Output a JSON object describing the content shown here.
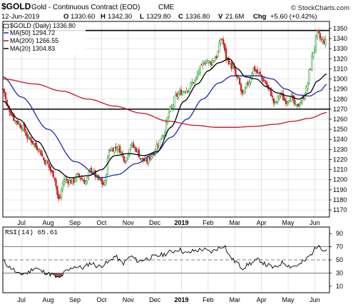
{
  "header": {
    "symbol": "$GOLD",
    "description": "Gold - Continuous Contract (EOD)",
    "exchange": "CME",
    "copyright": "© StockCharts.com"
  },
  "quote": {
    "date": "12-Jun-2019",
    "open_label": "O",
    "open": "1330.60",
    "high_label": "H",
    "high": "1342.30",
    "low_label": "L",
    "low": "1329.80",
    "close_label": "C",
    "close": "1336.80",
    "volume_label": "V",
    "volume": "21.6M",
    "change_label": "Chg",
    "change": "+5.60 (+0.42%)"
  },
  "legend": {
    "price": "$GOLD (Daily) 1336.80",
    "ma50": "MA(50) 1294.72",
    "ma200": "MA(200) 1266.55",
    "ma20": "MA(20) 1304.83",
    "rsi": "RSI(14) 65.61"
  },
  "colors": {
    "background": "#ffffff",
    "grid": "#cfcfcf",
    "candle_up": "#2a9d2a",
    "candle_down": "#c62828",
    "ma50": "#1f2a9e",
    "ma200": "#c8102e",
    "ma20": "#000000",
    "rsi_line": "#000000",
    "rsi_overbought_fill": "#c3aee0",
    "rsi_oversold_fill": "#8a5a50",
    "support_line": "#000000"
  },
  "chart_data": [
    {
      "type": "candlestick",
      "title": "$GOLD (Daily) 1336.80",
      "x_tick_labels": [
        "Jul",
        "Aug",
        "Sep",
        "Oct",
        "Nov",
        "Dec",
        "2019",
        "Feb",
        "Mar",
        "Apr",
        "May",
        "Jun"
      ],
      "x_tick_months": [
        1,
        2,
        3,
        4,
        5,
        6,
        7,
        8,
        9,
        10,
        11,
        12
      ],
      "y_tick_labels": [
        "1170",
        "1180",
        "1190",
        "1200",
        "1210",
        "1220",
        "1230",
        "1240",
        "1250",
        "1260",
        "1270",
        "1280",
        "1290",
        "1300",
        "1310",
        "1320",
        "1330",
        "1340",
        "1350"
      ],
      "ylim": [
        1163,
        1357
      ],
      "xlim_months": [
        0.3,
        12.55
      ],
      "grid": true,
      "legend_placement": "top-left",
      "horizontal_lines": [
        1348,
        1270
      ],
      "price_anchors": [
        [
          0.3,
          1290
        ],
        [
          0.5,
          1270
        ],
        [
          0.8,
          1258
        ],
        [
          1.0,
          1253
        ],
        [
          1.3,
          1240
        ],
        [
          1.6,
          1232
        ],
        [
          1.9,
          1218
        ],
        [
          2.2,
          1205
        ],
        [
          2.4,
          1180
        ],
        [
          2.6,
          1200
        ],
        [
          2.9,
          1198
        ],
        [
          3.1,
          1204
        ],
        [
          3.4,
          1198
        ],
        [
          3.6,
          1210
        ],
        [
          3.9,
          1200
        ],
        [
          4.1,
          1195
        ],
        [
          4.3,
          1230
        ],
        [
          4.6,
          1232
        ],
        [
          4.9,
          1220
        ],
        [
          5.1,
          1235
        ],
        [
          5.3,
          1230
        ],
        [
          5.5,
          1220
        ],
        [
          5.7,
          1218
        ],
        [
          5.9,
          1225
        ],
        [
          6.1,
          1235
        ],
        [
          6.3,
          1245
        ],
        [
          6.6,
          1270
        ],
        [
          6.8,
          1283
        ],
        [
          7.0,
          1287
        ],
        [
          7.2,
          1290
        ],
        [
          7.5,
          1298
        ],
        [
          7.7,
          1310
        ],
        [
          7.9,
          1318
        ],
        [
          8.1,
          1316
        ],
        [
          8.3,
          1322
        ],
        [
          8.5,
          1340
        ],
        [
          8.7,
          1320
        ],
        [
          8.9,
          1312
        ],
        [
          9.1,
          1300
        ],
        [
          9.3,
          1284
        ],
        [
          9.5,
          1296
        ],
        [
          9.7,
          1310
        ],
        [
          9.9,
          1305
        ],
        [
          10.1,
          1298
        ],
        [
          10.3,
          1288
        ],
        [
          10.5,
          1275
        ],
        [
          10.7,
          1285
        ],
        [
          10.9,
          1278
        ],
        [
          11.1,
          1282
        ],
        [
          11.3,
          1272
        ],
        [
          11.5,
          1278
        ],
        [
          11.7,
          1290
        ],
        [
          11.8,
          1308
        ],
        [
          11.95,
          1328
        ],
        [
          12.1,
          1345
        ],
        [
          12.25,
          1338
        ],
        [
          12.4,
          1336.8
        ]
      ],
      "series": [
        {
          "name": "MA(50)",
          "anchors": [
            [
              0.3,
              1302
            ],
            [
              1.0,
              1282
            ],
            [
              2.0,
              1250
            ],
            [
              3.0,
              1218
            ],
            [
              4.0,
              1202
            ],
            [
              4.6,
              1205
            ],
            [
              5.3,
              1216
            ],
            [
              6.0,
              1226
            ],
            [
              6.6,
              1242
            ],
            [
              7.2,
              1260
            ],
            [
              7.8,
              1280
            ],
            [
              8.4,
              1296
            ],
            [
              8.9,
              1303
            ],
            [
              9.4,
              1303
            ],
            [
              9.9,
              1303
            ],
            [
              10.4,
              1300
            ],
            [
              10.9,
              1290
            ],
            [
              11.4,
              1284
            ],
            [
              11.8,
              1283
            ],
            [
              12.2,
              1288
            ],
            [
              12.45,
              1294.72
            ]
          ]
        },
        {
          "name": "MA(200)",
          "anchors": [
            [
              0.3,
              1300
            ],
            [
              1.5,
              1295
            ],
            [
              2.5,
              1288
            ],
            [
              3.5,
              1280
            ],
            [
              4.5,
              1273
            ],
            [
              5.5,
              1266
            ],
            [
              6.5,
              1258
            ],
            [
              7.5,
              1254
            ],
            [
              8.3,
              1252
            ],
            [
              9.0,
              1252
            ],
            [
              9.8,
              1253
            ],
            [
              10.5,
              1255
            ],
            [
              11.2,
              1258
            ],
            [
              11.8,
              1261
            ],
            [
              12.45,
              1266.55
            ]
          ]
        },
        {
          "name": "MA(20)",
          "anchors": [
            [
              0.3,
              1278
            ],
            [
              0.9,
              1260
            ],
            [
              1.6,
              1238
            ],
            [
              2.3,
              1210
            ],
            [
              2.8,
              1202
            ],
            [
              3.5,
              1204
            ],
            [
              4.0,
              1210
            ],
            [
              4.5,
              1224
            ],
            [
              5.0,
              1226
            ],
            [
              5.6,
              1224
            ],
            [
              6.1,
              1228
            ],
            [
              6.6,
              1252
            ],
            [
              7.1,
              1278
            ],
            [
              7.6,
              1295
            ],
            [
              8.0,
              1308
            ],
            [
              8.4,
              1316
            ],
            [
              8.8,
              1320
            ],
            [
              9.1,
              1310
            ],
            [
              9.4,
              1302
            ],
            [
              9.8,
              1300
            ],
            [
              10.2,
              1292
            ],
            [
              10.6,
              1286
            ],
            [
              11.0,
              1283
            ],
            [
              11.4,
              1280
            ],
            [
              11.8,
              1286
            ],
            [
              12.1,
              1298
            ],
            [
              12.45,
              1304.83
            ]
          ]
        }
      ]
    },
    {
      "type": "line",
      "title": "RSI(14) 65.61",
      "y_tick_labels": [
        "10",
        "30",
        "50",
        "70",
        "90"
      ],
      "ylim": [
        0,
        100
      ],
      "reference_lines": [
        30,
        50,
        70
      ],
      "grid": true,
      "series": [
        {
          "name": "RSI(14)",
          "anchors": [
            [
              0.3,
              48
            ],
            [
              0.6,
              38
            ],
            [
              0.9,
              28
            ],
            [
              1.2,
              30
            ],
            [
              1.5,
              38
            ],
            [
              1.8,
              32
            ],
            [
              2.1,
              28
            ],
            [
              2.4,
              22
            ],
            [
              2.7,
              33
            ],
            [
              3.0,
              40
            ],
            [
              3.3,
              38
            ],
            [
              3.6,
              45
            ],
            [
              3.9,
              40
            ],
            [
              4.2,
              45
            ],
            [
              4.5,
              55
            ],
            [
              4.8,
              45
            ],
            [
              5.1,
              55
            ],
            [
              5.4,
              48
            ],
            [
              5.7,
              52
            ],
            [
              6.0,
              55
            ],
            [
              6.3,
              58
            ],
            [
              6.6,
              62
            ],
            [
              6.9,
              66
            ],
            [
              7.2,
              60
            ],
            [
              7.5,
              64
            ],
            [
              7.8,
              66
            ],
            [
              8.1,
              62
            ],
            [
              8.4,
              68
            ],
            [
              8.6,
              72
            ],
            [
              8.8,
              56
            ],
            [
              9.0,
              48
            ],
            [
              9.3,
              38
            ],
            [
              9.6,
              45
            ],
            [
              9.9,
              50
            ],
            [
              10.2,
              42
            ],
            [
              10.5,
              38
            ],
            [
              10.8,
              46
            ],
            [
              11.1,
              40
            ],
            [
              11.4,
              42
            ],
            [
              11.6,
              48
            ],
            [
              11.8,
              56
            ],
            [
              12.0,
              66
            ],
            [
              12.15,
              75
            ],
            [
              12.3,
              64
            ],
            [
              12.45,
              65.61
            ]
          ]
        }
      ]
    }
  ]
}
